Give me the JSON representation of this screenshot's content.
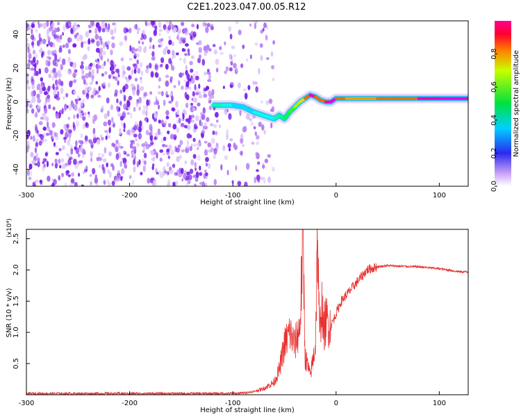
{
  "chart_data": [
    {
      "type": "heatmap",
      "title": "C2E1.2023.047.00.05.R12",
      "xlabel": "Height of straight line (km)",
      "ylabel": "Frequency (Hz)",
      "xlim": [
        -300,
        128
      ],
      "ylim": [
        -50,
        48
      ],
      "xticks": [
        "-300",
        "-200",
        "-100",
        "0",
        "100"
      ],
      "yticks": [
        "-40",
        "-20",
        "0",
        "20",
        "40"
      ],
      "colorbar": {
        "label": "Normalized spectral amplitude",
        "range": [
          0.0,
          1.0
        ],
        "ticks": [
          "0.0",
          "0.2",
          "0.4",
          "0.6",
          "0.8"
        ]
      },
      "ridge": {
        "x": [
          -120,
          -110,
          -100,
          -90,
          -80,
          -70,
          -60,
          -55,
          -50,
          -45,
          -40,
          -35,
          -30,
          -25,
          -20,
          -15,
          -10,
          -5,
          0,
          10,
          20,
          40,
          60,
          80,
          100,
          128
        ],
        "y": [
          -2,
          -2,
          -2,
          -3,
          -6,
          -8,
          -10,
          -8,
          -10,
          -6,
          -3,
          0,
          2,
          4,
          3,
          1,
          0,
          0,
          2,
          2,
          2,
          2,
          2,
          2,
          2,
          2
        ],
        "amplitude": [
          0.4,
          0.35,
          0.3,
          0.3,
          0.35,
          0.35,
          0.4,
          0.45,
          0.5,
          0.6,
          0.7,
          0.8,
          0.9,
          0.95,
          0.9,
          0.9,
          0.95,
          1.0,
          0.9,
          0.85,
          0.85,
          0.9,
          0.9,
          0.95,
          1.0,
          1.0
        ]
      },
      "grid": false
    },
    {
      "type": "line",
      "xlabel": "Height of straight line (km)",
      "ylabel": "SNR (10 * v/v)",
      "scale_label": "(x10⁴)",
      "xlim": [
        -300,
        128
      ],
      "ylim": [
        0,
        2.65
      ],
      "xticks": [
        "-300",
        "-200",
        "-100",
        "0",
        "100"
      ],
      "yticks": [
        "0.5",
        "1.0",
        "1.5",
        "2.0",
        "2.5"
      ],
      "series": [
        {
          "color": "#e83030",
          "x": [
            -300,
            -200,
            -120,
            -100,
            -90,
            -80,
            -70,
            -60,
            -55,
            -50,
            -45,
            -40,
            -35,
            -32,
            -30,
            -28,
            -25,
            -20,
            -18,
            -16,
            -14,
            -12,
            -10,
            -5,
            0,
            5,
            10,
            20,
            30,
            40,
            50,
            60,
            80,
            100,
            120,
            128
          ],
          "y": [
            0.02,
            0.02,
            0.02,
            0.02,
            0.03,
            0.05,
            0.1,
            0.2,
            0.4,
            0.8,
            1.0,
            0.8,
            1.1,
            2.55,
            0.6,
            0.5,
            0.3,
            0.8,
            2.55,
            0.9,
            1.5,
            1.0,
            1.2,
            1.1,
            1.3,
            1.5,
            1.6,
            1.8,
            2.0,
            2.05,
            2.07,
            2.06,
            2.05,
            2.02,
            1.97,
            1.97
          ]
        }
      ],
      "grid": false
    }
  ],
  "colors": {
    "line": "#e83030",
    "axes": "#000000",
    "background": "#ffffff"
  }
}
